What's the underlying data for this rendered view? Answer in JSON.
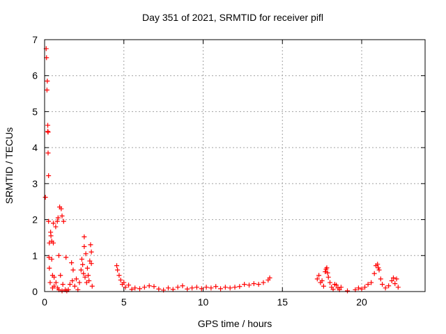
{
  "chart_data": {
    "type": "scatter",
    "title": "Day 351 of 2021, SRMTID for receiver pifl",
    "xlabel": "GPS time / hours",
    "ylabel": "SRMTID / TECUs",
    "xlim": [
      0,
      24
    ],
    "ylim": [
      0,
      7
    ],
    "x_ticks": [
      0,
      5,
      10,
      15,
      20
    ],
    "y_ticks": [
      0,
      1,
      2,
      3,
      4,
      5,
      6,
      7
    ],
    "grid": true,
    "marker": "+",
    "color": "#ff0000",
    "series": [
      {
        "name": "SRMTID",
        "points": [
          [
            0.05,
            2.62
          ],
          [
            0.1,
            6.75
          ],
          [
            0.12,
            6.5
          ],
          [
            0.15,
            5.6
          ],
          [
            0.17,
            5.85
          ],
          [
            0.2,
            4.62
          ],
          [
            0.2,
            4.45
          ],
          [
            0.22,
            4.43
          ],
          [
            0.22,
            3.85
          ],
          [
            0.25,
            3.22
          ],
          [
            0.25,
            1.95
          ],
          [
            0.3,
            1.35
          ],
          [
            0.28,
            0.95
          ],
          [
            0.3,
            0.65
          ],
          [
            0.35,
            0.25
          ],
          [
            0.38,
            1.65
          ],
          [
            0.4,
            1.55
          ],
          [
            0.45,
            1.4
          ],
          [
            0.45,
            0.9
          ],
          [
            0.5,
            0.45
          ],
          [
            0.5,
            0.1
          ],
          [
            0.55,
            1.35
          ],
          [
            0.55,
            1.9
          ],
          [
            0.6,
            0.4
          ],
          [
            0.6,
            0.15
          ],
          [
            0.7,
            1.8
          ],
          [
            0.72,
            0.25
          ],
          [
            0.8,
            1.95
          ],
          [
            0.82,
            0.1
          ],
          [
            0.85,
            2.05
          ],
          [
            0.9,
            1.0
          ],
          [
            0.9,
            0.05
          ],
          [
            0.95,
            2.35
          ],
          [
            1.0,
            0.45
          ],
          [
            1.05,
            2.3
          ],
          [
            1.1,
            2.1
          ],
          [
            1.1,
            0.02
          ],
          [
            1.15,
            0.2
          ],
          [
            1.2,
            1.95
          ],
          [
            1.3,
            0.05
          ],
          [
            1.35,
            0.95
          ],
          [
            1.4,
            0.02
          ],
          [
            1.5,
            0.05
          ],
          [
            1.6,
            0.2
          ],
          [
            1.7,
            0.8
          ],
          [
            1.75,
            0.3
          ],
          [
            1.8,
            0.6
          ],
          [
            1.9,
            0.15
          ],
          [
            2.0,
            0.35
          ],
          [
            2.1,
            0.05
          ],
          [
            2.2,
            0.25
          ],
          [
            2.3,
            0.6
          ],
          [
            2.35,
            0.9
          ],
          [
            2.4,
            0.75
          ],
          [
            2.45,
            0.5
          ],
          [
            2.5,
            1.52
          ],
          [
            2.5,
            1.25
          ],
          [
            2.55,
            0.4
          ],
          [
            2.6,
            1.05
          ],
          [
            2.65,
            0.25
          ],
          [
            2.7,
            0.65
          ],
          [
            2.75,
            0.45
          ],
          [
            2.8,
            0.3
          ],
          [
            2.85,
            0.85
          ],
          [
            2.9,
            1.3
          ],
          [
            2.95,
            1.1
          ],
          [
            2.95,
            0.78
          ],
          [
            3.0,
            0.15
          ],
          [
            4.55,
            0.72
          ],
          [
            4.6,
            0.6
          ],
          [
            4.7,
            0.45
          ],
          [
            4.8,
            0.32
          ],
          [
            4.9,
            0.2
          ],
          [
            5.0,
            0.25
          ],
          [
            5.1,
            0.12
          ],
          [
            5.3,
            0.18
          ],
          [
            5.5,
            0.06
          ],
          [
            5.7,
            0.1
          ],
          [
            6.0,
            0.08
          ],
          [
            6.3,
            0.12
          ],
          [
            6.6,
            0.16
          ],
          [
            6.9,
            0.14
          ],
          [
            7.2,
            0.07
          ],
          [
            7.5,
            0.04
          ],
          [
            7.8,
            0.1
          ],
          [
            8.1,
            0.06
          ],
          [
            8.4,
            0.12
          ],
          [
            8.7,
            0.16
          ],
          [
            9.0,
            0.07
          ],
          [
            9.3,
            0.1
          ],
          [
            9.6,
            0.12
          ],
          [
            9.9,
            0.08
          ],
          [
            10.2,
            0.12
          ],
          [
            10.5,
            0.1
          ],
          [
            10.8,
            0.14
          ],
          [
            11.1,
            0.08
          ],
          [
            11.4,
            0.12
          ],
          [
            11.7,
            0.1
          ],
          [
            12.0,
            0.12
          ],
          [
            12.3,
            0.14
          ],
          [
            12.6,
            0.2
          ],
          [
            12.9,
            0.18
          ],
          [
            13.2,
            0.22
          ],
          [
            13.5,
            0.2
          ],
          [
            13.8,
            0.25
          ],
          [
            14.1,
            0.32
          ],
          [
            14.2,
            0.38
          ],
          [
            17.2,
            0.35
          ],
          [
            17.3,
            0.45
          ],
          [
            17.4,
            0.25
          ],
          [
            17.5,
            0.3
          ],
          [
            17.6,
            0.15
          ],
          [
            17.7,
            0.55
          ],
          [
            17.75,
            0.62
          ],
          [
            17.8,
            0.66
          ],
          [
            17.85,
            0.52
          ],
          [
            17.9,
            0.4
          ],
          [
            18.0,
            0.25
          ],
          [
            18.1,
            0.12
          ],
          [
            18.2,
            0.06
          ],
          [
            18.3,
            0.2
          ],
          [
            18.4,
            0.18
          ],
          [
            18.5,
            0.1
          ],
          [
            18.6,
            0.05
          ],
          [
            18.7,
            0.12
          ],
          [
            19.1,
            0.02
          ],
          [
            19.6,
            0.05
          ],
          [
            19.8,
            0.1
          ],
          [
            20.0,
            0.07
          ],
          [
            20.2,
            0.12
          ],
          [
            20.4,
            0.2
          ],
          [
            20.6,
            0.25
          ],
          [
            20.8,
            0.5
          ],
          [
            20.9,
            0.72
          ],
          [
            21.0,
            0.76
          ],
          [
            21.05,
            0.66
          ],
          [
            21.1,
            0.6
          ],
          [
            21.2,
            0.35
          ],
          [
            21.3,
            0.2
          ],
          [
            21.5,
            0.1
          ],
          [
            21.7,
            0.16
          ],
          [
            21.9,
            0.3
          ],
          [
            22.0,
            0.38
          ],
          [
            22.1,
            0.22
          ],
          [
            22.2,
            0.35
          ],
          [
            22.3,
            0.12
          ]
        ]
      }
    ]
  }
}
